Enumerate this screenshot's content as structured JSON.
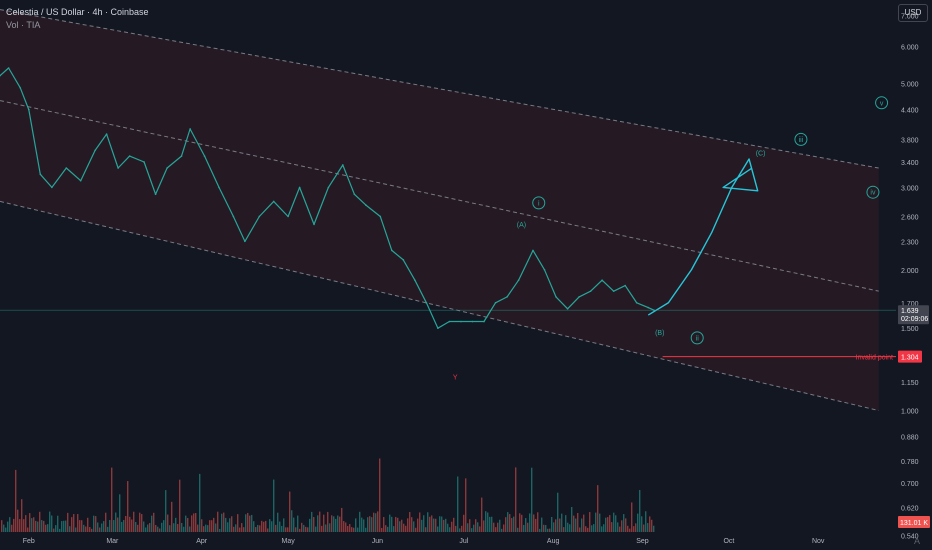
{
  "header": {
    "symbol_line": "Celestia / US Dollar · 4h · Coinbase",
    "volume_line": "Vol · TIA"
  },
  "currency": "USD",
  "logo_glyph": "A",
  "colors": {
    "background": "#131722",
    "up": "#26a69a",
    "down": "#ef5350",
    "axis_text": "#b2b5be",
    "channel_line": "#787b86",
    "channel_fill": "#3b1f26",
    "arrow": "#26c6da",
    "wave_label": "#26a69a",
    "invalid": "#f23645",
    "price_label_bg": "#434651"
  },
  "chart_data": {
    "type": "line",
    "y_scale": "log",
    "ylim": [
      0.55,
      7.4
    ],
    "xlim": [
      "2024-01-22",
      "2024-11-28"
    ],
    "y_ticks": [
      "7.000",
      "6.000",
      "5.000",
      "4.400",
      "3.800",
      "3.400",
      "3.000",
      "2.600",
      "2.300",
      "2.000",
      "1.700",
      "1.500",
      "1.304",
      "1.150",
      "1.000",
      "0.880",
      "0.780",
      "0.700",
      "0.620",
      "0.540"
    ],
    "x_ticks": [
      {
        "label": "Feb",
        "date": "2024-02-01"
      },
      {
        "label": "Mar",
        "date": "2024-03-01"
      },
      {
        "label": "Apr",
        "date": "2024-04-01"
      },
      {
        "label": "May",
        "date": "2024-05-01"
      },
      {
        "label": "Jun",
        "date": "2024-06-01"
      },
      {
        "label": "Jul",
        "date": "2024-07-01"
      },
      {
        "label": "Aug",
        "date": "2024-08-01"
      },
      {
        "label": "Sep",
        "date": "2024-09-01"
      },
      {
        "label": "Oct",
        "date": "2024-10-01"
      },
      {
        "label": "Nov",
        "date": "2024-11-01"
      }
    ],
    "series": [
      {
        "points": [
          [
            "2024-01-22",
            5.2
          ],
          [
            "2024-01-25",
            5.4
          ],
          [
            "2024-01-29",
            4.9
          ],
          [
            "2024-02-01",
            4.4
          ],
          [
            "2024-02-05",
            3.2
          ],
          [
            "2024-02-09",
            3.0
          ],
          [
            "2024-02-14",
            3.3
          ],
          [
            "2024-02-19",
            3.1
          ],
          [
            "2024-02-24",
            3.6
          ],
          [
            "2024-02-28",
            3.9
          ],
          [
            "2024-03-03",
            3.3
          ],
          [
            "2024-03-07",
            3.5
          ],
          [
            "2024-03-12",
            3.4
          ],
          [
            "2024-03-16",
            2.9
          ],
          [
            "2024-03-20",
            3.3
          ],
          [
            "2024-03-25",
            3.5
          ],
          [
            "2024-03-28",
            4.0
          ],
          [
            "2024-04-02",
            3.5
          ],
          [
            "2024-04-07",
            3.0
          ],
          [
            "2024-04-12",
            2.6
          ],
          [
            "2024-04-16",
            2.3
          ],
          [
            "2024-04-21",
            2.6
          ],
          [
            "2024-04-26",
            2.8
          ],
          [
            "2024-05-01",
            2.6
          ],
          [
            "2024-05-05",
            3.0
          ],
          [
            "2024-05-10",
            2.5
          ],
          [
            "2024-05-15",
            3.0
          ],
          [
            "2024-05-20",
            3.35
          ],
          [
            "2024-05-24",
            2.9
          ],
          [
            "2024-05-28",
            2.75
          ],
          [
            "2024-06-02",
            2.6
          ],
          [
            "2024-06-06",
            2.2
          ],
          [
            "2024-06-10",
            2.1
          ],
          [
            "2024-06-14",
            1.9
          ],
          [
            "2024-06-18",
            1.7
          ],
          [
            "2024-06-22",
            1.5
          ],
          [
            "2024-06-26",
            1.55
          ],
          [
            "2024-06-30",
            1.55
          ],
          [
            "2024-07-04",
            1.55
          ],
          [
            "2024-07-08",
            1.55
          ],
          [
            "2024-07-12",
            1.7
          ],
          [
            "2024-07-16",
            1.75
          ],
          [
            "2024-07-20",
            1.9
          ],
          [
            "2024-07-25",
            2.2
          ],
          [
            "2024-07-29",
            2.0
          ],
          [
            "2024-08-02",
            1.75
          ],
          [
            "2024-08-06",
            1.65
          ],
          [
            "2024-08-10",
            1.75
          ],
          [
            "2024-08-14",
            1.8
          ],
          [
            "2024-08-18",
            1.9
          ],
          [
            "2024-08-22",
            1.8
          ],
          [
            "2024-08-26",
            1.85
          ],
          [
            "2024-08-30",
            1.7
          ],
          [
            "2024-09-03",
            1.66
          ],
          [
            "2024-09-05",
            1.639
          ]
        ]
      }
    ],
    "volume_axis_label": "131.01 K"
  },
  "channel": {
    "upper": [
      [
        "2024-01-22",
        7.2
      ],
      [
        "2024-11-22",
        3.3
      ]
    ],
    "middle": [
      [
        "2024-01-22",
        4.6
      ],
      [
        "2024-11-22",
        1.8
      ]
    ],
    "lower": [
      [
        "2024-01-22",
        2.8
      ],
      [
        "2024-11-22",
        1.0
      ]
    ]
  },
  "projection_path": [
    [
      "2024-09-03",
      1.6
    ],
    [
      "2024-09-10",
      1.7
    ],
    [
      "2024-09-18",
      2.0
    ],
    [
      "2024-09-25",
      2.4
    ],
    [
      "2024-10-02",
      3.0
    ],
    [
      "2024-10-08",
      3.45
    ],
    [
      "2024-10-11",
      2.95
    ],
    [
      "2024-09-29",
      3.0
    ],
    [
      "2024-10-09",
      3.3
    ]
  ],
  "wave_labels": [
    {
      "text": "i",
      "date": "2024-07-27",
      "value": 2.78,
      "circled": true
    },
    {
      "text": "ii",
      "date": "2024-09-20",
      "value": 1.43,
      "circled": true
    },
    {
      "text": "iii",
      "date": "2024-10-26",
      "value": 3.8,
      "circled": true
    },
    {
      "text": "iv",
      "date": "2024-11-20",
      "value": 2.93,
      "circled": true
    },
    {
      "text": "v",
      "date": "2024-11-23",
      "value": 4.55,
      "circled": true
    },
    {
      "text": "(A)",
      "date": "2024-07-21",
      "value": 2.5,
      "circled": false
    },
    {
      "text": "(B)",
      "date": "2024-09-07",
      "value": 1.47,
      "circled": false
    },
    {
      "text": "(C)",
      "date": "2024-10-12",
      "value": 3.55,
      "circled": false
    },
    {
      "text": "Y",
      "date": "2024-06-28",
      "value": 1.18,
      "circled": false,
      "red": true
    }
  ],
  "current_price": {
    "value": 1.639,
    "label": "1.639",
    "countdown": "02:09:06"
  },
  "invalidation": {
    "value": 1.304,
    "label": "1.304",
    "text": "Invalid point",
    "from_date": "2024-09-08"
  }
}
